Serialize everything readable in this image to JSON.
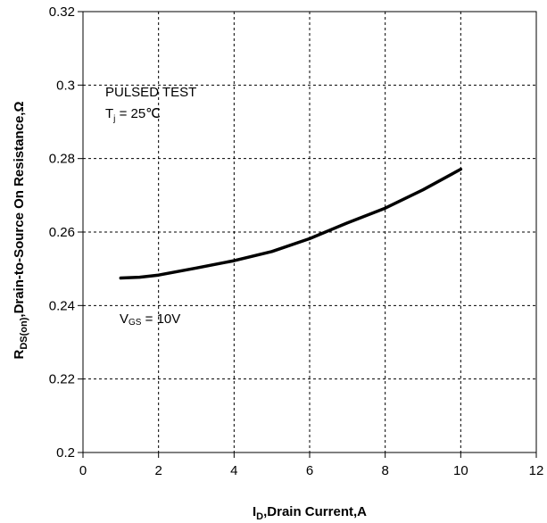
{
  "chart_data": {
    "type": "line",
    "xlabel": {
      "main": "I",
      "sub": "D",
      "rest": ",Drain Current,A"
    },
    "ylabel": {
      "main": "R",
      "sub": "DS(on)",
      "rest": ",Drain-to-Source On Resistance,Ω"
    },
    "xlim": [
      0,
      12
    ],
    "ylim": [
      0.2,
      0.32
    ],
    "x_ticks": [
      0,
      2,
      4,
      6,
      8,
      10,
      12
    ],
    "x_tick_labels": [
      "0",
      "2",
      "4",
      "6",
      "8",
      "10",
      "12"
    ],
    "y_ticks": [
      0.2,
      0.22,
      0.24,
      0.26,
      0.28,
      0.3,
      0.32
    ],
    "y_tick_labels": [
      "0.2",
      "0.22",
      "0.24",
      "0.26",
      "0.28",
      "0.3",
      "0.32"
    ],
    "grid": true,
    "series": [
      {
        "color": "#000000",
        "x": [
          1,
          1.5,
          2,
          3,
          4,
          5,
          6,
          7,
          8,
          9,
          10
        ],
        "y": [
          0.2475,
          0.2477,
          0.2483,
          0.2502,
          0.2522,
          0.2547,
          0.2582,
          0.2625,
          0.2665,
          0.2715,
          0.2771
        ]
      }
    ],
    "annotations": {
      "test_line1": "PULSED TEST",
      "test_line2_main": "T",
      "test_line2_sub": "j",
      "test_line2_rest": " = 25℃",
      "vgs_main": "V",
      "vgs_sub": "GS",
      "vgs_rest": " = 10V"
    }
  }
}
